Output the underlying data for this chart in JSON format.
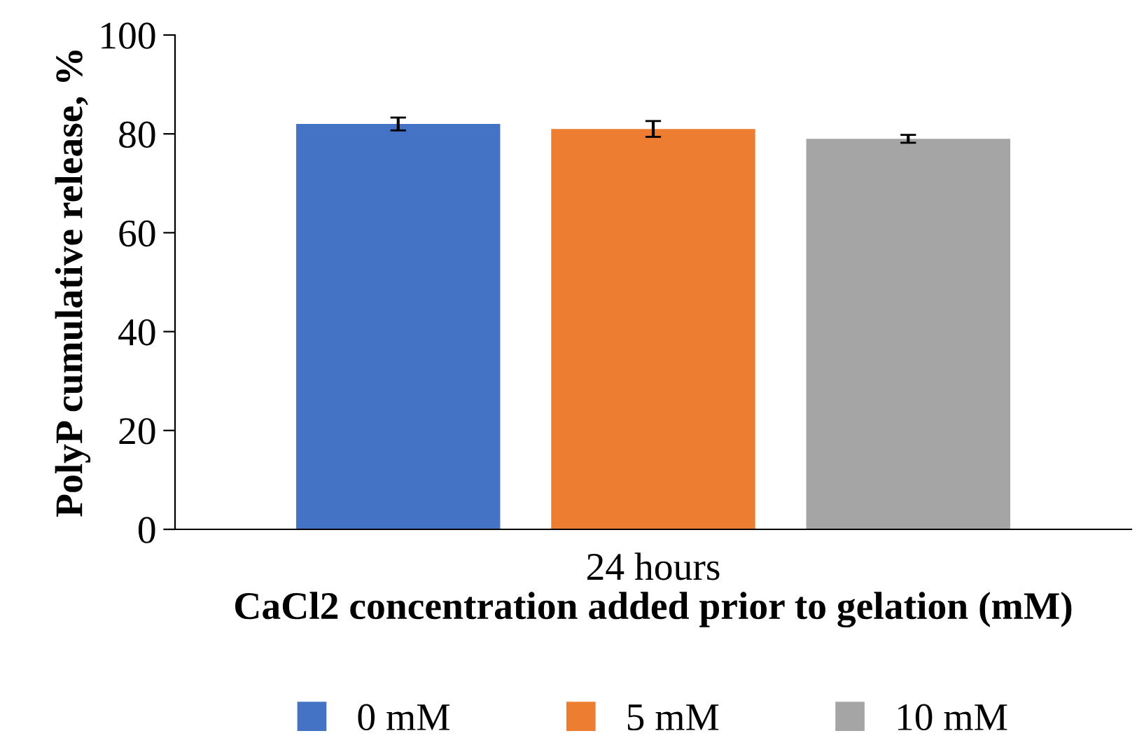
{
  "chart_data": {
    "type": "bar",
    "xlabel": "CaCl2 concentration added prior to gelation (mM)",
    "ylabel": "PolyP cumulative release, %",
    "categories": [
      "24 hours"
    ],
    "series": [
      {
        "name": "0 mM",
        "color": "#4472c4",
        "values": [
          82
        ],
        "errors": [
          1.3
        ]
      },
      {
        "name": "5 mM",
        "color": "#ed7d31",
        "values": [
          81
        ],
        "errors": [
          1.6
        ]
      },
      {
        "name": "10 mM",
        "color": "#a5a5a5",
        "values": [
          79
        ],
        "errors": [
          0.8
        ]
      }
    ],
    "ylim": [
      0,
      100
    ],
    "yticks": [
      0,
      20,
      40,
      60,
      80,
      100
    ],
    "grid": false,
    "legend": "bottom"
  }
}
